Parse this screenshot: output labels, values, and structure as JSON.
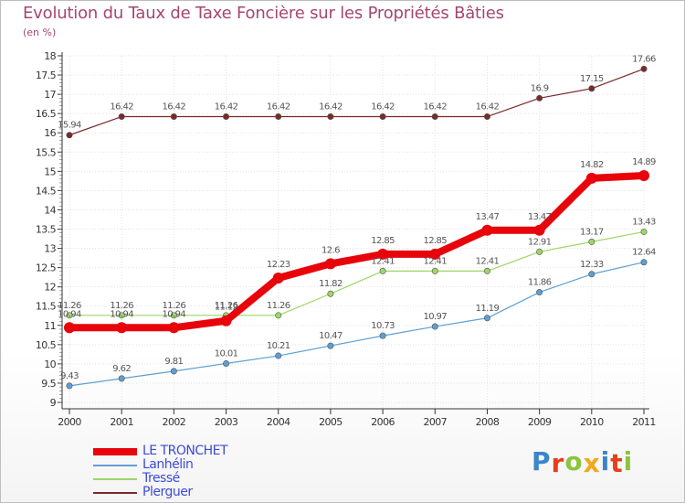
{
  "title": "Evolution du Taux de Taxe Foncière sur les Propriétés Bâties",
  "subtitle": "(en %)",
  "brand": "Proxiti",
  "brand_colors": [
    "#3a86c8",
    "#e63f1a",
    "#8cc43c",
    "#f2a81d",
    "#3a86c8",
    "#e63f1a",
    "#8cc43c"
  ],
  "chart_data": {
    "type": "line",
    "title": "Evolution du Taux de Taxe Foncière sur les Propriétés Bâties",
    "ylabel": "(en %)",
    "xlabel": "",
    "categories": [
      "2000",
      "2001",
      "2002",
      "2003",
      "2004",
      "2005",
      "2006",
      "2007",
      "2008",
      "2009",
      "2010",
      "2011"
    ],
    "ylim": [
      9,
      18
    ],
    "yticks": [
      "9",
      "9.5",
      "10",
      "10.5",
      "11",
      "11.5",
      "12",
      "12.5",
      "13",
      "13.5",
      "14",
      "14.5",
      "15",
      "15.5",
      "16",
      "16.5",
      "17",
      "17.5",
      "18"
    ],
    "grid": true,
    "series": [
      {
        "name": "LE TRONCHET",
        "color": "#e8040b",
        "values": [
          10.94,
          10.94,
          10.94,
          11.12,
          12.23,
          12.6,
          12.85,
          12.85,
          13.47,
          13.47,
          14.82,
          14.89
        ],
        "labels": [
          "10.94",
          "10.94",
          "10.94",
          "11.12",
          "12.23",
          "12.6",
          "12.85",
          "12.85",
          "13.47",
          "13.47",
          "14.82",
          "14.89"
        ]
      },
      {
        "name": "Lanhélin",
        "color": "#5e9fd2",
        "values": [
          9.43,
          9.62,
          9.81,
          10.01,
          10.21,
          10.47,
          10.73,
          10.97,
          11.19,
          11.86,
          12.33,
          12.64
        ],
        "labels": [
          "9.43",
          "9.62",
          "9.81",
          "10.01",
          "10.21",
          "10.47",
          "10.73",
          "10.97",
          "11.19",
          "11.86",
          "12.33",
          "12.64"
        ]
      },
      {
        "name": "Tressé",
        "color": "#9cd666",
        "values": [
          11.26,
          11.26,
          11.26,
          11.26,
          11.26,
          11.82,
          12.41,
          12.41,
          12.41,
          12.91,
          13.17,
          13.43
        ],
        "labels": [
          "11.26",
          "11.26",
          "11.26",
          "11.26",
          "11.26",
          "11.82",
          "12.41",
          "12.41",
          "12.41",
          "12.91",
          "13.17",
          "13.43"
        ]
      },
      {
        "name": "Plerguer",
        "color": "#7a2a2a",
        "values": [
          15.94,
          16.42,
          16.42,
          16.42,
          16.42,
          16.42,
          16.42,
          16.42,
          16.42,
          16.9,
          17.15,
          17.66
        ],
        "labels": [
          "15.94",
          "16.42",
          "16.42",
          "16.42",
          "16.42",
          "16.42",
          "16.42",
          "16.42",
          "16.42",
          "16.9",
          "17.15",
          "17.66"
        ]
      }
    ]
  }
}
